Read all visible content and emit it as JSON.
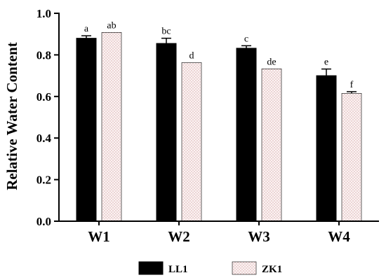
{
  "chart_data": {
    "type": "bar",
    "categories": [
      "W1",
      "W2",
      "W3",
      "W4"
    ],
    "series": [
      {
        "name": "LL1",
        "values": [
          0.88,
          0.855,
          0.832,
          0.7
        ],
        "errors": [
          0.012,
          0.025,
          0.012,
          0.032
        ],
        "labels": [
          "a",
          "bc",
          "c",
          "e"
        ],
        "fill": "#000000"
      },
      {
        "name": "ZK1",
        "values": [
          0.908,
          0.763,
          0.733,
          0.615
        ],
        "errors": [
          0.0,
          0.0,
          0.0,
          0.008
        ],
        "labels": [
          "ab",
          "d",
          "de",
          "f"
        ],
        "fill": "#f3dede"
      }
    ],
    "title": "",
    "xlabel": "",
    "ylabel": "Relative Water Content",
    "ylim": [
      0,
      1.0
    ],
    "yticks": [
      "0.0",
      "0.2",
      "0.4",
      "0.6",
      "0.8",
      "1.0"
    ],
    "grid": false,
    "legend": "bottom",
    "colors": {
      "axis": "#000000",
      "dots": "#c98a8a"
    }
  }
}
